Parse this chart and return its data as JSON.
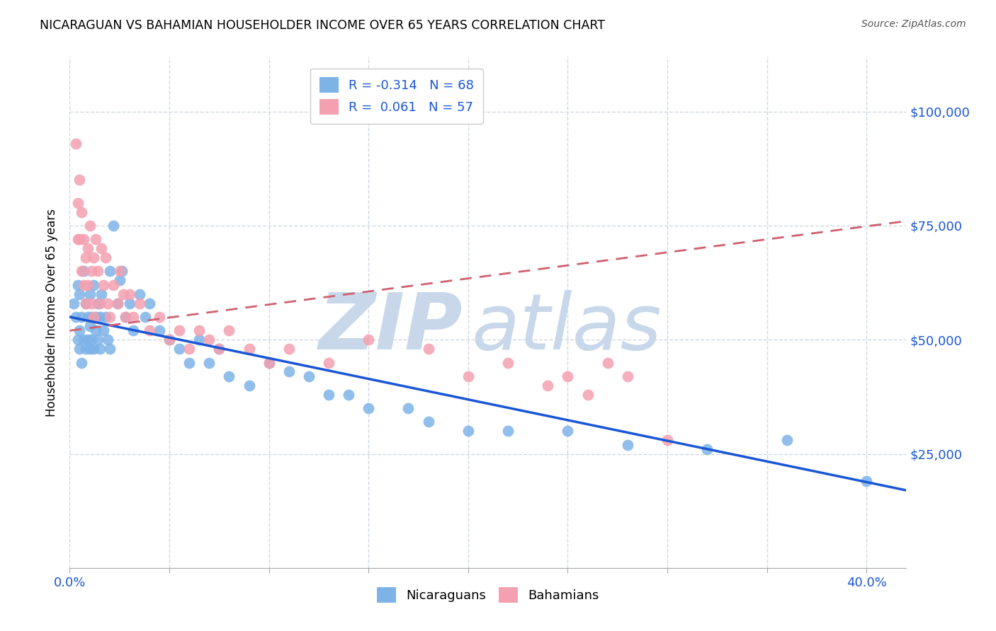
{
  "title": "NICARAGUAN VS BAHAMIAN HOUSEHOLDER INCOME OVER 65 YEARS CORRELATION CHART",
  "source": "Source: ZipAtlas.com",
  "ylabel": "Householder Income Over 65 years",
  "xlim": [
    0.0,
    0.42
  ],
  "ylim": [
    0,
    112000
  ],
  "legend_r_nicaraguan": "-0.314",
  "legend_n_nicaraguan": "68",
  "legend_r_bahamian": "0.061",
  "legend_n_bahamian": "57",
  "nicaraguan_color": "#7EB3E8",
  "bahamian_color": "#F4A0B0",
  "trendline_nicaraguan_color": "#1a56d6",
  "trendline_bahamian_color": "#d06070",
  "watermark_zip_color": "#c8d8ea",
  "watermark_atlas_color": "#c8d8ea",
  "background_color": "#ffffff",
  "grid_color": "#d0d8e0",
  "xtick_positions": [
    0.0,
    0.05,
    0.1,
    0.15,
    0.2,
    0.25,
    0.3,
    0.35,
    0.4
  ],
  "xtick_labels_show": {
    "0.0": "0.0%",
    "0.4": "40.0%"
  },
  "ytick_positions": [
    0,
    25000,
    50000,
    75000,
    100000
  ],
  "right_ytick_labels": [
    "$100,000",
    "$75,000",
    "$50,000",
    "$25,000"
  ],
  "right_ytick_vals": [
    100000,
    75000,
    50000,
    25000
  ],
  "trendline_nic_x0": 0.0,
  "trendline_nic_y0": 55000,
  "trendline_nic_x1": 0.42,
  "trendline_nic_y1": 17000,
  "trendline_bah_x0": 0.0,
  "trendline_bah_y0": 52000,
  "trendline_bah_x1": 0.42,
  "trendline_bah_y1": 76000,
  "nicaraguan_x": [
    0.002,
    0.003,
    0.004,
    0.004,
    0.005,
    0.005,
    0.005,
    0.006,
    0.006,
    0.007,
    0.007,
    0.008,
    0.008,
    0.009,
    0.009,
    0.01,
    0.01,
    0.01,
    0.011,
    0.011,
    0.012,
    0.012,
    0.013,
    0.013,
    0.014,
    0.014,
    0.015,
    0.015,
    0.016,
    0.017,
    0.018,
    0.019,
    0.02,
    0.02,
    0.022,
    0.024,
    0.025,
    0.026,
    0.028,
    0.03,
    0.032,
    0.035,
    0.038,
    0.04,
    0.045,
    0.05,
    0.055,
    0.06,
    0.065,
    0.07,
    0.075,
    0.08,
    0.09,
    0.1,
    0.11,
    0.12,
    0.13,
    0.14,
    0.15,
    0.17,
    0.18,
    0.2,
    0.22,
    0.25,
    0.28,
    0.32,
    0.36,
    0.4
  ],
  "nicaraguan_y": [
    58000,
    55000,
    62000,
    50000,
    60000,
    52000,
    48000,
    55000,
    45000,
    65000,
    50000,
    58000,
    48000,
    55000,
    50000,
    60000,
    53000,
    48000,
    55000,
    50000,
    62000,
    48000,
    55000,
    52000,
    50000,
    58000,
    55000,
    48000,
    60000,
    52000,
    55000,
    50000,
    65000,
    48000,
    75000,
    58000,
    63000,
    65000,
    55000,
    58000,
    52000,
    60000,
    55000,
    58000,
    52000,
    50000,
    48000,
    45000,
    50000,
    45000,
    48000,
    42000,
    40000,
    45000,
    43000,
    42000,
    38000,
    38000,
    35000,
    35000,
    32000,
    30000,
    30000,
    30000,
    27000,
    26000,
    28000,
    19000
  ],
  "bahamian_x": [
    0.003,
    0.004,
    0.004,
    0.005,
    0.005,
    0.006,
    0.006,
    0.007,
    0.007,
    0.008,
    0.008,
    0.009,
    0.009,
    0.01,
    0.011,
    0.011,
    0.012,
    0.012,
    0.013,
    0.014,
    0.015,
    0.016,
    0.017,
    0.018,
    0.019,
    0.02,
    0.022,
    0.024,
    0.025,
    0.027,
    0.028,
    0.03,
    0.032,
    0.035,
    0.04,
    0.045,
    0.05,
    0.055,
    0.06,
    0.065,
    0.07,
    0.075,
    0.08,
    0.09,
    0.1,
    0.11,
    0.13,
    0.15,
    0.18,
    0.2,
    0.22,
    0.24,
    0.25,
    0.26,
    0.27,
    0.28,
    0.3
  ],
  "bahamian_y": [
    93000,
    80000,
    72000,
    85000,
    72000,
    78000,
    65000,
    72000,
    62000,
    68000,
    58000,
    70000,
    62000,
    75000,
    65000,
    58000,
    68000,
    55000,
    72000,
    65000,
    58000,
    70000,
    62000,
    68000,
    58000,
    55000,
    62000,
    58000,
    65000,
    60000,
    55000,
    60000,
    55000,
    58000,
    52000,
    55000,
    50000,
    52000,
    48000,
    52000,
    50000,
    48000,
    52000,
    48000,
    45000,
    48000,
    45000,
    50000,
    48000,
    42000,
    45000,
    40000,
    42000,
    38000,
    45000,
    42000,
    28000
  ]
}
